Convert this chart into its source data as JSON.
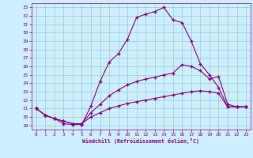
{
  "xlabel": "Windchill (Refroidissement éolien,°C)",
  "background_color": "#cceeff",
  "line_color": "#880088",
  "grid_color": "#99cccc",
  "xlim_min": -0.5,
  "xlim_max": 23.5,
  "ylim_min": 18.5,
  "ylim_max": 33.5,
  "xticks": [
    0,
    1,
    2,
    3,
    4,
    5,
    6,
    7,
    8,
    9,
    10,
    11,
    12,
    13,
    14,
    15,
    16,
    17,
    18,
    19,
    20,
    21,
    22,
    23
  ],
  "yticks": [
    19,
    20,
    21,
    22,
    23,
    24,
    25,
    26,
    27,
    28,
    29,
    30,
    31,
    32,
    33
  ],
  "line1_x": [
    0,
    1,
    2,
    3,
    4,
    5,
    6,
    7,
    8,
    9,
    10,
    11,
    12,
    13,
    14,
    15,
    16,
    17,
    18,
    19,
    20,
    21,
    22,
    23
  ],
  "line1_y": [
    21.0,
    20.2,
    19.8,
    19.2,
    19.1,
    19.1,
    21.3,
    24.2,
    26.5,
    27.5,
    29.2,
    31.8,
    32.2,
    32.5,
    33.0,
    31.5,
    31.2,
    29.0,
    26.3,
    25.0,
    23.5,
    21.2,
    21.2,
    21.2
  ],
  "line2_x": [
    0,
    1,
    2,
    3,
    4,
    5,
    6,
    7,
    8,
    9,
    10,
    11,
    12,
    13,
    14,
    15,
    16,
    17,
    18,
    19,
    20,
    21,
    22,
    23
  ],
  "line2_y": [
    21.0,
    20.2,
    19.8,
    19.5,
    19.2,
    19.2,
    20.5,
    21.5,
    22.5,
    23.2,
    23.8,
    24.2,
    24.5,
    24.7,
    25.0,
    25.2,
    26.2,
    26.0,
    25.5,
    24.5,
    24.8,
    21.5,
    21.2,
    21.2
  ],
  "line3_x": [
    0,
    1,
    2,
    3,
    4,
    5,
    6,
    7,
    8,
    9,
    10,
    11,
    12,
    13,
    14,
    15,
    16,
    17,
    18,
    19,
    20,
    21,
    22,
    23
  ],
  "line3_y": [
    21.0,
    20.2,
    19.8,
    19.5,
    19.2,
    19.2,
    20.0,
    20.5,
    21.0,
    21.3,
    21.6,
    21.8,
    22.0,
    22.2,
    22.4,
    22.6,
    22.8,
    23.0,
    23.1,
    23.0,
    22.8,
    21.2,
    21.2,
    21.2
  ]
}
